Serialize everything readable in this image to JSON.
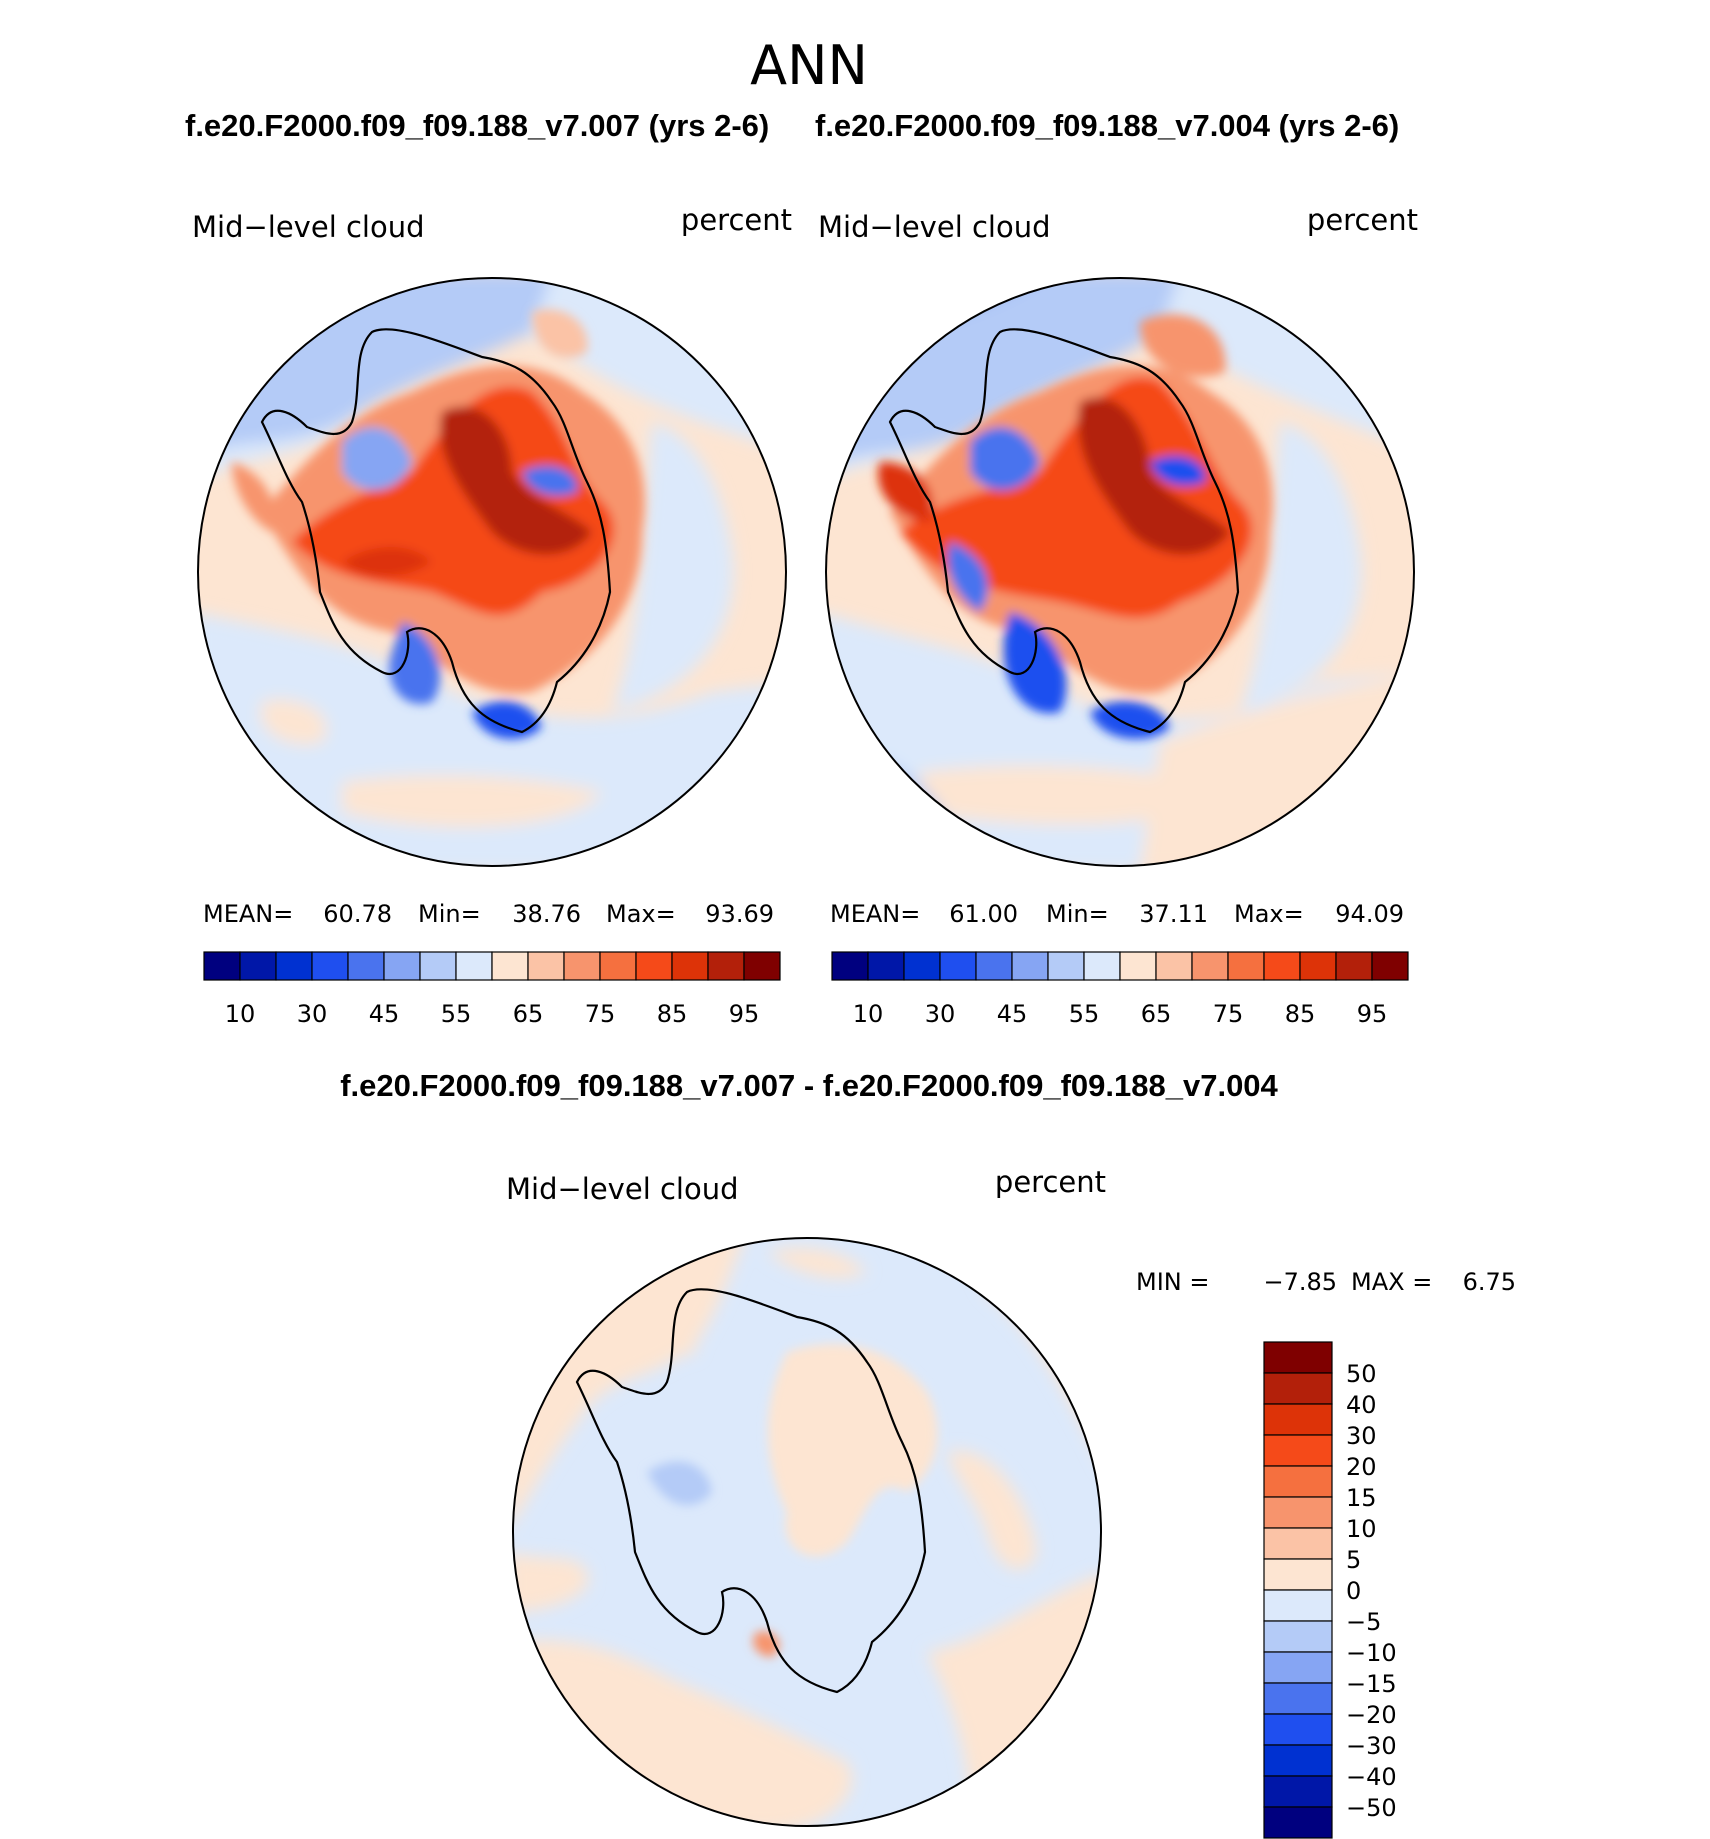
{
  "page": {
    "title": "ANN",
    "subtitle_left": "f.e20.F2000.f09_f09.188_v7.007 (yrs 2-6)",
    "subtitle_right": "f.e20.F2000.f09_f09.188_v7.004 (yrs 2-6)",
    "diff_title": "f.e20.F2000.f09_f09.188_v7.007 - f.e20.F2000.f09_f09.188_v7.004"
  },
  "panels": [
    {
      "variable": "Mid−level cloud",
      "units": "percent",
      "stats": {
        "mean_label": "MEAN=",
        "mean": "60.78",
        "min_label": "Min=",
        "min": "38.76",
        "max_label": "Max=",
        "max": "93.69"
      }
    },
    {
      "variable": "Mid−level cloud",
      "units": "percent",
      "stats": {
        "mean_label": "MEAN=",
        "mean": "61.00",
        "min_label": "Min=",
        "min": "37.11",
        "max_label": "Max=",
        "max": "94.09"
      }
    }
  ],
  "diff_panel": {
    "variable": "Mid−level cloud",
    "units": "percent",
    "min_label": "MIN =",
    "min": "−7.85",
    "max_label": "MAX =",
    "max": "6.75"
  },
  "abs_colorbar": {
    "tick_labels": [
      "10",
      "30",
      "45",
      "55",
      "65",
      "75",
      "85",
      "95"
    ],
    "colors": [
      "#00007f",
      "#0017a8",
      "#0031d1",
      "#1f4fef",
      "#4a73ee",
      "#86a5f3",
      "#b4cbf7",
      "#dce9fb",
      "#fde5d2",
      "#fbc3a6",
      "#f7946d",
      "#f5703f",
      "#f54a19",
      "#dd3308",
      "#b3200a",
      "#7f0000"
    ]
  },
  "diff_colorbar": {
    "tick_labels": [
      "50",
      "40",
      "30",
      "20",
      "15",
      "10",
      "5",
      "0",
      "−5",
      "−10",
      "−15",
      "−20",
      "−30",
      "−40",
      "−50"
    ],
    "colors": [
      "#7f0000",
      "#b3200a",
      "#dd3308",
      "#f54a19",
      "#f5703f",
      "#f7946d",
      "#fbc3a6",
      "#fde5d2",
      "#dce9fb",
      "#b4cbf7",
      "#86a5f3",
      "#4a73ee",
      "#1f4fef",
      "#0031d1",
      "#0017a8",
      "#00007f"
    ]
  }
}
